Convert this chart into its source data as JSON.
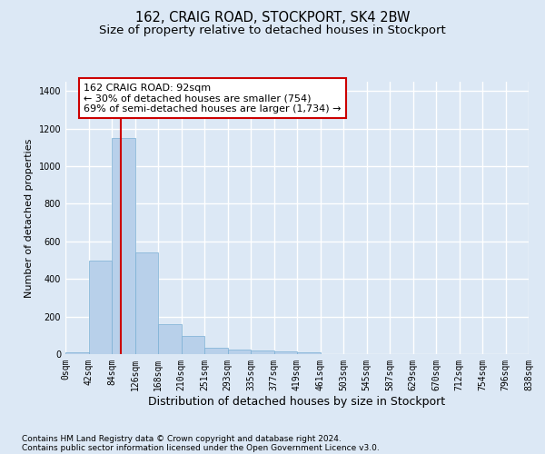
{
  "title": "162, CRAIG ROAD, STOCKPORT, SK4 2BW",
  "subtitle": "Size of property relative to detached houses in Stockport",
  "xlabel": "Distribution of detached houses by size in Stockport",
  "ylabel": "Number of detached properties",
  "bar_color": "#b8d0ea",
  "bar_edge_color": "#7aafd4",
  "bg_color": "#dce8f5",
  "grid_color": "#ffffff",
  "bin_labels": [
    "0sqm",
    "42sqm",
    "84sqm",
    "126sqm",
    "168sqm",
    "210sqm",
    "251sqm",
    "293sqm",
    "335sqm",
    "377sqm",
    "419sqm",
    "461sqm",
    "503sqm",
    "545sqm",
    "587sqm",
    "629sqm",
    "670sqm",
    "712sqm",
    "754sqm",
    "796sqm",
    "838sqm"
  ],
  "bar_heights": [
    10,
    500,
    1150,
    540,
    160,
    95,
    35,
    25,
    20,
    15,
    8,
    0,
    0,
    0,
    0,
    0,
    0,
    0,
    0,
    0
  ],
  "vline_color": "#cc0000",
  "vline_bin_index": 2,
  "vline_x_offset": 0.38,
  "annotation_text": "162 CRAIG ROAD: 92sqm\n← 30% of detached houses are smaller (754)\n69% of semi-detached houses are larger (1,734) →",
  "annotation_box_color": "#ffffff",
  "annotation_box_edge": "#cc0000",
  "ylim": [
    0,
    1450
  ],
  "yticks": [
    0,
    200,
    400,
    600,
    800,
    1000,
    1200,
    1400
  ],
  "footer1": "Contains HM Land Registry data © Crown copyright and database right 2024.",
  "footer2": "Contains public sector information licensed under the Open Government Licence v3.0.",
  "title_fontsize": 10.5,
  "subtitle_fontsize": 9.5,
  "ylabel_fontsize": 8,
  "xlabel_fontsize": 9,
  "tick_fontsize": 7,
  "annotation_fontsize": 8,
  "footer_fontsize": 6.5
}
